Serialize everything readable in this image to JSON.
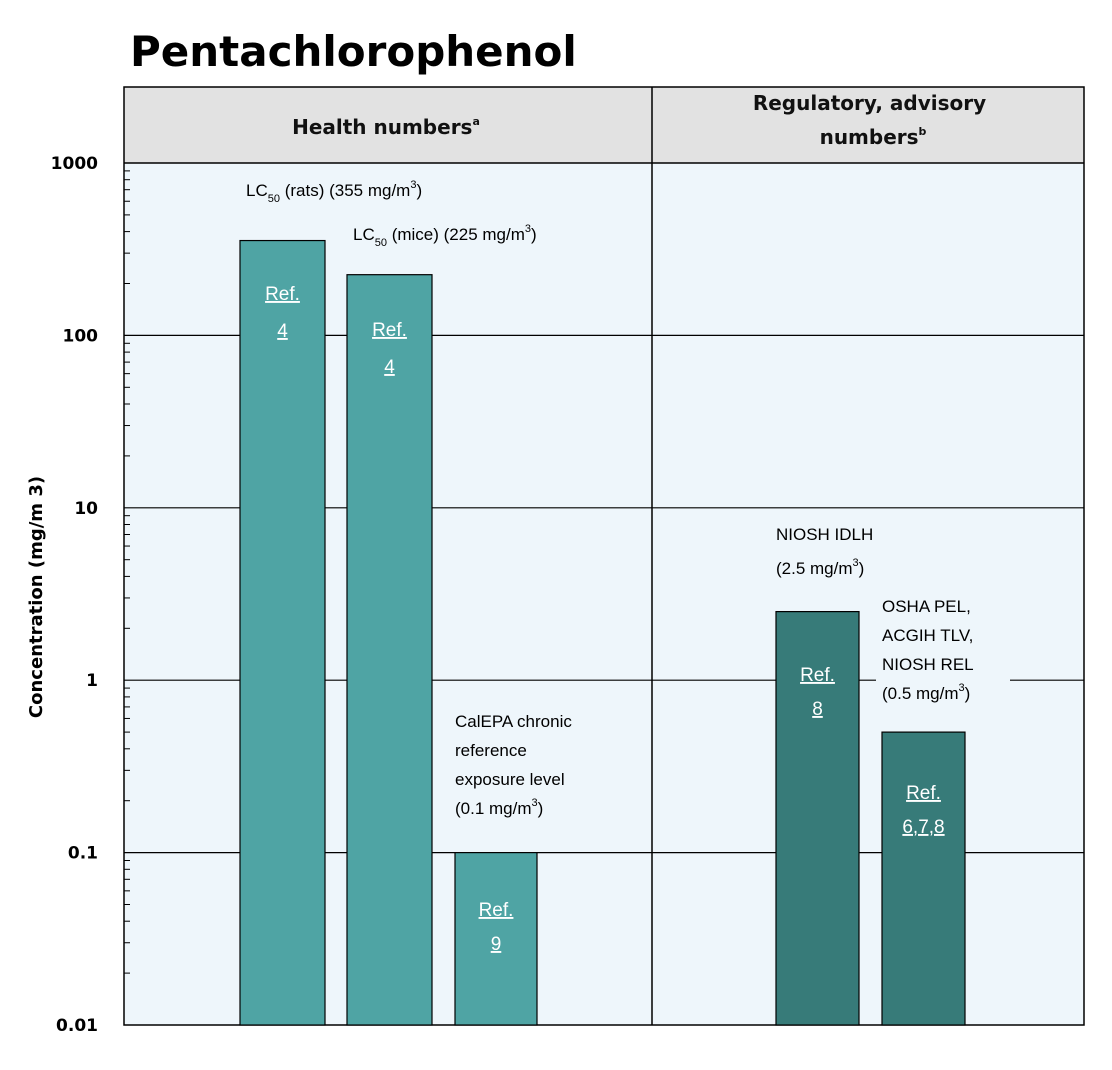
{
  "chart_data": {
    "type": "bar",
    "title": "Pentachlorophenol",
    "ylabel": "Concentration (mg/m 3)",
    "yscale": "log",
    "ylim": [
      0.01,
      1000
    ],
    "yticks": [
      "1000",
      "100",
      "10",
      "1",
      "0.1",
      "0.01"
    ],
    "panels": [
      {
        "name": "Health numbers",
        "superscript": "a"
      },
      {
        "name": "Regulatory, advisory numbers",
        "name_lines": [
          "Regulatory, advisory",
          "numbers"
        ],
        "superscript": "b"
      }
    ],
    "bars": [
      {
        "id": "lc50-rats",
        "panel": 0,
        "value": 355,
        "color": "#4fa4a4",
        "label_lines": [
          {
            "parts": [
              [
                "LC",
                ""
              ],
              [
                "50",
                "sub"
              ],
              [
                " (rats) (355 mg/m",
                ""
              ],
              [
                "3",
                "sup"
              ],
              [
                ")",
                ""
              ]
            ]
          }
        ],
        "ref": [
          "Ref.",
          "4"
        ]
      },
      {
        "id": "lc50-mice",
        "panel": 0,
        "value": 225,
        "color": "#4fa4a4",
        "label_lines": [
          {
            "parts": [
              [
                "LC",
                ""
              ],
              [
                "50",
                "sub"
              ],
              [
                " (mice) (225 mg/m",
                ""
              ],
              [
                "3",
                "sup"
              ],
              [
                ")",
                ""
              ]
            ]
          }
        ],
        "ref": [
          "Ref.",
          "4"
        ]
      },
      {
        "id": "calepa-rel",
        "panel": 0,
        "value": 0.1,
        "color": "#4fa4a4",
        "label_lines": [
          {
            "parts": [
              [
                "CalEPA chronic",
                ""
              ]
            ]
          },
          {
            "parts": [
              [
                "reference",
                ""
              ]
            ]
          },
          {
            "parts": [
              [
                "exposure level",
                ""
              ]
            ]
          },
          {
            "parts": [
              [
                "(0.1 mg/m",
                ""
              ],
              [
                "3",
                "sup"
              ],
              [
                ")",
                ""
              ]
            ]
          }
        ],
        "ref": [
          "Ref.",
          "9"
        ]
      },
      {
        "id": "niosh-idlh",
        "panel": 1,
        "value": 2.5,
        "color": "#377b79",
        "label_lines": [
          {
            "parts": [
              [
                "NIOSH IDLH",
                ""
              ]
            ]
          },
          {
            "parts": [
              [
                "(2.5 mg/m",
                ""
              ],
              [
                "3",
                "sup"
              ],
              [
                ")",
                ""
              ]
            ]
          }
        ],
        "ref": [
          "Ref.",
          "8"
        ]
      },
      {
        "id": "osha-pel",
        "panel": 1,
        "value": 0.5,
        "color": "#377b79",
        "label_lines": [
          {
            "parts": [
              [
                "OSHA PEL,",
                ""
              ]
            ]
          },
          {
            "parts": [
              [
                "ACGIH TLV,",
                ""
              ]
            ]
          },
          {
            "parts": [
              [
                "NIOSH REL",
                ""
              ]
            ]
          },
          {
            "parts": [
              [
                "(0.5 mg/m",
                ""
              ],
              [
                "3",
                "sup"
              ],
              [
                ")",
                ""
              ]
            ]
          }
        ],
        "ref": [
          "Ref.",
          "6,7,8"
        ]
      }
    ],
    "grid": true
  },
  "colors": {
    "plot_bg": "#eef6fb",
    "header_bg": "#e2e2e2",
    "health_bar": "#4fa4a4",
    "regulatory_bar": "#377b79"
  }
}
